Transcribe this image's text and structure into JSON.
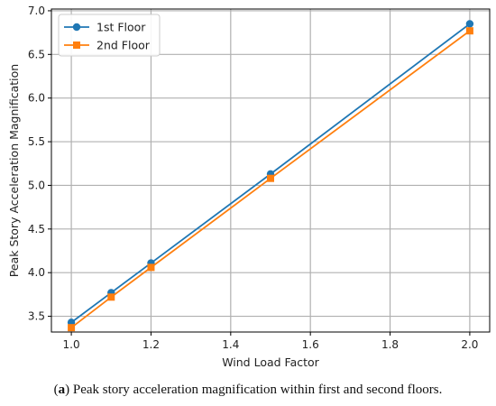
{
  "chart_data": {
    "type": "line",
    "xlabel": "Wind Load Factor",
    "ylabel": "Peak Story Acceleration Magnification",
    "xlim": [
      0.95,
      2.05
    ],
    "ylim": [
      3.32,
      7.02
    ],
    "xticks": [
      "1.0",
      "1.2",
      "1.4",
      "1.6",
      "1.8",
      "2.0"
    ],
    "yticks": [
      "3.5",
      "4.0",
      "4.5",
      "5.0",
      "5.5",
      "6.0",
      "6.5",
      "7.0"
    ],
    "grid": true,
    "legend_position": "top-left",
    "series": [
      {
        "name": "1st Floor",
        "color": "#1f77b4",
        "marker": "circle",
        "x": [
          1.0,
          1.1,
          1.2,
          1.5,
          2.0
        ],
        "y": [
          3.43,
          3.77,
          4.11,
          5.13,
          6.85
        ]
      },
      {
        "name": "2nd Floor",
        "color": "#ff7f0e",
        "marker": "square",
        "x": [
          1.0,
          1.1,
          1.2,
          1.5,
          2.0
        ],
        "y": [
          3.37,
          3.72,
          4.06,
          5.08,
          6.77
        ]
      }
    ]
  },
  "caption": {
    "letter": "a",
    "text": " Peak story acceleration magnification within first and second floors."
  }
}
